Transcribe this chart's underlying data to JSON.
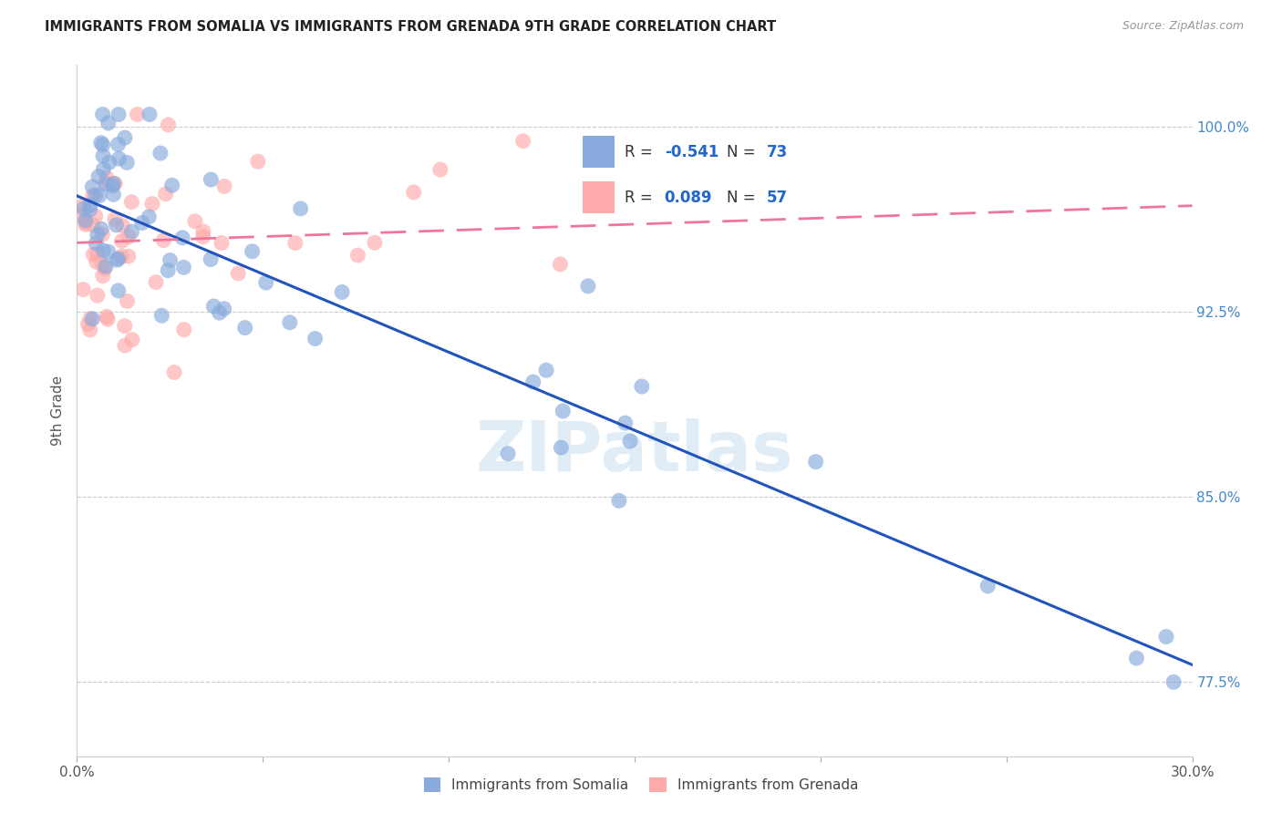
{
  "title": "IMMIGRANTS FROM SOMALIA VS IMMIGRANTS FROM GRENADA 9TH GRADE CORRELATION CHART",
  "source": "Source: ZipAtlas.com",
  "ylabel": "9th Grade",
  "yticks_labels": [
    "77.5%",
    "85.0%",
    "92.5%",
    "100.0%"
  ],
  "ytick_vals": [
    0.775,
    0.85,
    0.925,
    1.0
  ],
  "xlim": [
    0.0,
    0.3
  ],
  "ylim": [
    0.745,
    1.025
  ],
  "somalia_color": "#88AADD",
  "grenada_color": "#FFAAAA",
  "somalia_line_color": "#2255BB",
  "grenada_line_color": "#EE7799",
  "watermark": "ZIPatlas",
  "somalia_R": "-0.541",
  "somalia_N": "73",
  "grenada_R": "0.089",
  "grenada_N": "57",
  "legend_label_somalia": "Immigrants from Somalia",
  "legend_label_grenada": "Immigrants from Grenada",
  "som_line_x0": 0.0,
  "som_line_y0": 0.972,
  "som_line_x1": 0.3,
  "som_line_y1": 0.782,
  "gren_line_x0": 0.0,
  "gren_line_y0": 0.953,
  "gren_line_x1": 0.3,
  "gren_line_y1": 0.968
}
